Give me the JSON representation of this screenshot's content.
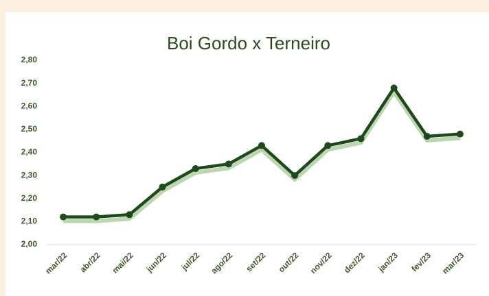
{
  "chart_data": {
    "type": "line",
    "title": "Boi Gordo x Terneiro",
    "categories": [
      "mar/22",
      "abr/22",
      "mai/22",
      "jun/22",
      "jul/22",
      "ago/22",
      "set/22",
      "out/22",
      "nov/22",
      "dez/22",
      "jan/23",
      "fev/23",
      "mar/23"
    ],
    "values": [
      2.12,
      2.12,
      2.13,
      2.25,
      2.33,
      2.35,
      2.43,
      2.3,
      2.43,
      2.46,
      2.68,
      2.47,
      2.48
    ],
    "color": "#1d4a1a",
    "ylim": [
      2.0,
      2.8
    ],
    "yticks": [
      {
        "value": 2.0,
        "label": "2,00"
      },
      {
        "value": 2.1,
        "label": "2,10"
      },
      {
        "value": 2.2,
        "label": "2,20"
      },
      {
        "value": 2.3,
        "label": "2,30"
      },
      {
        "value": 2.4,
        "label": "2,40"
      },
      {
        "value": 2.5,
        "label": "2,50"
      },
      {
        "value": 2.6,
        "label": "2,60"
      },
      {
        "value": 2.7,
        "label": "2,70"
      },
      {
        "value": 2.8,
        "label": "2,80"
      }
    ],
    "grid": false
  }
}
